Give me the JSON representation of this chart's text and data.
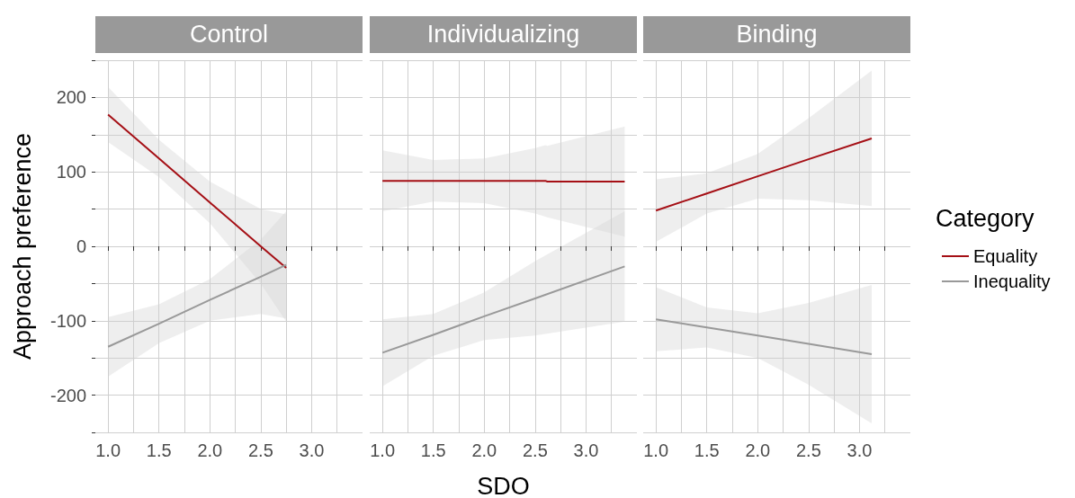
{
  "chart_data": [
    {
      "type": "line",
      "title": "Control",
      "ylabel": "Approach preference",
      "xlim": [
        0.875,
        3.5
      ],
      "ylim": [
        -250,
        250
      ],
      "xticks": [
        {
          "value": 1,
          "label": "1.0"
        },
        {
          "value": 1.25,
          "label": null
        },
        {
          "value": 1.5,
          "label": "1.5"
        },
        {
          "value": 1.75,
          "label": null
        },
        {
          "value": 2,
          "label": "2.0"
        },
        {
          "value": 2.25,
          "label": null
        },
        {
          "value": 2.5,
          "label": "2.5"
        },
        {
          "value": 2.75,
          "label": null
        },
        {
          "value": 3,
          "label": "3.0"
        },
        {
          "value": 3.25,
          "label": null
        }
      ],
      "yticks": [
        {
          "value": -250,
          "label": null
        },
        -200,
        {
          "value": -150,
          "label": null
        },
        -100,
        {
          "value": -50,
          "label": null
        },
        0,
        {
          "value": 50,
          "label": null
        },
        100,
        {
          "value": 150,
          "label": null
        },
        200,
        {
          "value": 250,
          "label": null
        }
      ],
      "grid": true,
      "series": [
        {
          "color": "#a50f15",
          "x": [
            1,
            1.5,
            2,
            2.5,
            2.75
          ],
          "values": [
            177,
            118,
            59,
            0,
            -29
          ],
          "lower": [
            140,
            93,
            31,
            -50,
            -101
          ],
          "upper": [
            214,
            143,
            87,
            50,
            43
          ]
        },
        {
          "color": "#999999",
          "x": [
            1,
            1.5,
            2,
            2.5,
            2.75
          ],
          "values": [
            -135,
            -104,
            -72,
            -41,
            -25
          ],
          "lower": [
            -175,
            -130,
            -100,
            -91,
            -97
          ],
          "upper": [
            -95,
            -78,
            -44,
            9,
            47
          ]
        }
      ]
    },
    {
      "type": "line",
      "title": "Individualizing",
      "xlabel": "SDO",
      "xlim": [
        0.875,
        3.5
      ],
      "ylim": [
        -250,
        250
      ],
      "xticks": [
        {
          "value": 1,
          "label": "1.0"
        },
        {
          "value": 1.25,
          "label": null
        },
        {
          "value": 1.5,
          "label": "1.5"
        },
        {
          "value": 1.75,
          "label": null
        },
        {
          "value": 2,
          "label": "2.0"
        },
        {
          "value": 2.25,
          "label": null
        },
        {
          "value": 2.5,
          "label": "2.5"
        },
        {
          "value": 2.75,
          "label": null
        },
        {
          "value": 3,
          "label": "3.0"
        },
        {
          "value": 3.25,
          "label": null
        }
      ],
      "yticks": [
        {
          "value": -250,
          "label": null
        },
        -200,
        {
          "value": -150,
          "label": null
        },
        -100,
        {
          "value": -50,
          "label": null
        },
        0,
        {
          "value": 50,
          "label": null
        },
        100,
        {
          "value": 150,
          "label": null
        },
        200,
        {
          "value": 250,
          "label": null
        }
      ],
      "grid": true,
      "tick_labels": "x",
      "series": [
        {
          "color": "#a50f15",
          "x": [
            1,
            1.5,
            2,
            2.5,
            2.6,
            2.62,
            3.38
          ],
          "values": [
            88,
            88,
            88,
            88,
            88,
            87,
            87
          ],
          "lower": [
            47,
            60,
            58,
            44,
            40,
            39,
            13
          ],
          "upper": [
            129,
            116,
            118,
            132,
            136,
            135,
            161
          ]
        },
        {
          "color": "#999999",
          "x": [
            1,
            1.5,
            2,
            2.5,
            3.38
          ],
          "values": [
            -143,
            -119,
            -94,
            -70,
            -27
          ],
          "lower": [
            -188,
            -147,
            -126,
            -120,
            -101
          ],
          "upper": [
            -98,
            -91,
            -62,
            -20,
            47
          ]
        }
      ]
    },
    {
      "type": "line",
      "title": "Binding",
      "legend_title": "Category",
      "legend": "right",
      "xlim": [
        0.875,
        3.5
      ],
      "ylim": [
        -250,
        250
      ],
      "xticks": [
        {
          "value": 1,
          "label": "1.0"
        },
        {
          "value": 1.25,
          "label": null
        },
        {
          "value": 1.5,
          "label": "1.5"
        },
        {
          "value": 1.75,
          "label": null
        },
        {
          "value": 2,
          "label": "2.0"
        },
        {
          "value": 2.25,
          "label": null
        },
        {
          "value": 2.5,
          "label": "2.5"
        },
        {
          "value": 2.75,
          "label": null
        },
        {
          "value": 3,
          "label": "3.0"
        },
        {
          "value": 3.25,
          "label": null
        }
      ],
      "yticks": [
        {
          "value": -250,
          "label": null
        },
        -200,
        {
          "value": -150,
          "label": null
        },
        -100,
        {
          "value": -50,
          "label": null
        },
        0,
        {
          "value": 50,
          "label": null
        },
        100,
        {
          "value": 150,
          "label": null
        },
        200,
        {
          "value": 250,
          "label": null
        }
      ],
      "grid": true,
      "tick_labels": "x",
      "series": [
        {
          "name": "Equality",
          "color": "#a50f15",
          "x": [
            1,
            1.5,
            2,
            2.5,
            3.12
          ],
          "values": [
            48,
            71,
            94,
            117,
            145
          ],
          "lower": [
            6,
            44,
            64,
            62,
            54
          ],
          "upper": [
            90,
            98,
            124,
            172,
            236
          ]
        },
        {
          "name": "Inequality",
          "color": "#999999",
          "x": [
            1,
            1.5,
            2,
            2.5,
            3.12
          ],
          "values": [
            -98,
            -109,
            -120,
            -131,
            -145
          ],
          "lower": [
            -141,
            -136,
            -150,
            -186,
            -238
          ],
          "upper": [
            -55,
            -82,
            -90,
            -76,
            -52
          ]
        }
      ]
    }
  ]
}
